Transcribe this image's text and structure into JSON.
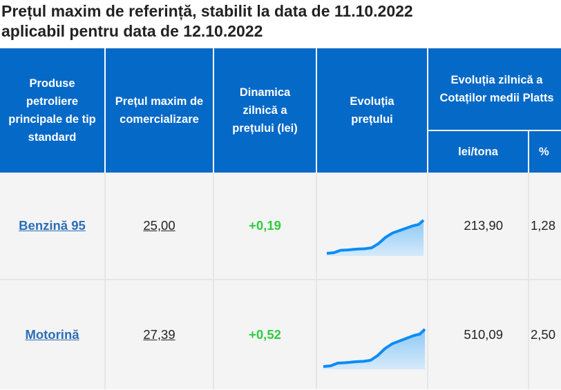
{
  "title_line1": "Prețul maxim de referință, stabilit la data de 11.10.2022",
  "title_line2": "aplicabil pentru data de 12.10.2022",
  "headers": {
    "product": "Produse petroliere principale de tip standard",
    "max_price": "Prețul maxim de comercializare",
    "dynamics": "Dinamica zilnică a prețului (lei)",
    "evolution": "Evoluția prețului",
    "platts": "Evoluția zilnică a Cotaților medii Platts",
    "lei_tona": "lei/tona",
    "percent": "%"
  },
  "rows": [
    {
      "product": "Benzină 95",
      "price": "25,00",
      "dynamic": "+0,19",
      "lei_tona": "213,90",
      "percent": "1,28"
    },
    {
      "product": "Motorină",
      "price": "27,39",
      "dynamic": "+0,52",
      "lei_tona": "510,09",
      "percent": "2,50"
    }
  ],
  "colors": {
    "header": "#0569c8",
    "positive": "#2ecc40",
    "sparkline": "#0a8cf5"
  }
}
